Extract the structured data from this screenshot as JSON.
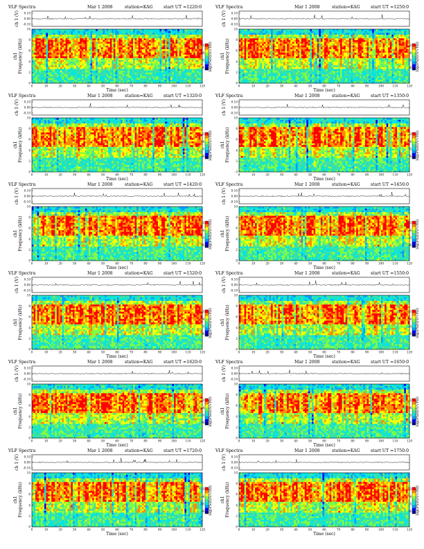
{
  "page": {
    "header_left": "VLF Spectra",
    "header_date": "Mar 1 2008",
    "header_station": "station=KAG",
    "header_start_prefix": "start  UT  ="
  },
  "colors": {
    "spectrogram_scale": [
      "#00008b",
      "#0000ff",
      "#00a0ff",
      "#00e5e5",
      "#40e0a0",
      "#80ff40",
      "#ffff00",
      "#ff8c00",
      "#ff0000"
    ],
    "trace": "#000000",
    "frame": "#000000"
  },
  "chart_data": [
    {
      "type": "heatmap",
      "start_ut": "1220:0",
      "title": "VLF Spectra",
      "top_ylabel": "ch 1 (V)",
      "top_yticks": [
        "0.10",
        "0.00",
        "-0.10"
      ],
      "ylabel_line1": "ch1",
      "ylabel_line2": "Frequency  (kHz)",
      "y_ticks": [
        0,
        2,
        4,
        6,
        8,
        10
      ],
      "xlabel": "Time  (sec)",
      "x_ticks": [
        0,
        10,
        20,
        30,
        40,
        50,
        60,
        70,
        80,
        90,
        100,
        110,
        120
      ],
      "xlim": [
        0,
        120
      ],
      "ylim": [
        0,
        10
      ],
      "colorbar_label": "log(PSD)(V/√Hz)",
      "colorbar_ticks": [
        "-3",
        "-4",
        "-5",
        "-6"
      ]
    },
    {
      "type": "heatmap",
      "start_ut": "1250:0",
      "title": "VLF Spectra",
      "top_ylabel": "ch 1 (V)",
      "top_yticks": [
        "0.10",
        "0.00",
        "-0.10"
      ],
      "ylabel_line1": "ch1",
      "ylabel_line2": "Frequency  (kHz)",
      "y_ticks": [
        0,
        2,
        4,
        6,
        8,
        10
      ],
      "xlabel": "Time  (sec)",
      "x_ticks": [
        0,
        10,
        20,
        30,
        40,
        50,
        60,
        70,
        80,
        90,
        100,
        110,
        120
      ],
      "xlim": [
        0,
        120
      ],
      "ylim": [
        0,
        10
      ],
      "colorbar_label": "log(PSD)(V/√Hz)",
      "colorbar_ticks": [
        "-3",
        "-4",
        "-5",
        "-6"
      ]
    },
    {
      "type": "heatmap",
      "start_ut": "1320:0",
      "title": "VLF Spectra",
      "top_ylabel": "ch 1 (V)",
      "top_yticks": [
        "0.10",
        "0.00",
        "-0.10"
      ],
      "ylabel_line1": "ch1",
      "ylabel_line2": "Frequency  (kHz)",
      "y_ticks": [
        0,
        2,
        4,
        6,
        8,
        10
      ],
      "xlabel": "Time  (sec)",
      "x_ticks": [
        0,
        10,
        20,
        30,
        40,
        50,
        60,
        70,
        80,
        90,
        100,
        110,
        120
      ],
      "xlim": [
        0,
        120
      ],
      "ylim": [
        0,
        10
      ],
      "colorbar_label": "log(PSD)(V/√Hz)",
      "colorbar_ticks": [
        "-3",
        "-4",
        "-5",
        "-6"
      ]
    },
    {
      "type": "heatmap",
      "start_ut": "1350:0",
      "title": "VLF Spectra",
      "top_ylabel": "ch 1 (V)",
      "top_yticks": [
        "0.10",
        "0.00",
        "-0.10"
      ],
      "ylabel_line1": "ch1",
      "ylabel_line2": "Frequency  (kHz)",
      "y_ticks": [
        0,
        2,
        4,
        6,
        8,
        10
      ],
      "xlabel": "Time  (sec)",
      "x_ticks": [
        0,
        10,
        20,
        30,
        40,
        50,
        60,
        70,
        80,
        90,
        100,
        110,
        120
      ],
      "xlim": [
        0,
        120
      ],
      "ylim": [
        0,
        10
      ],
      "colorbar_label": "log(PSD)(V/√Hz)",
      "colorbar_ticks": [
        "-3",
        "-4",
        "-5",
        "-6"
      ]
    },
    {
      "type": "heatmap",
      "start_ut": "1420:0",
      "title": "VLF Spectra",
      "top_ylabel": "ch 1 (V)",
      "top_yticks": [
        "0.10",
        "0.00",
        "-0.10"
      ],
      "ylabel_line1": "ch1",
      "ylabel_line2": "Frequency  (kHz)",
      "y_ticks": [
        0,
        2,
        4,
        6,
        8,
        10
      ],
      "xlabel": "Time  (sec)",
      "x_ticks": [
        0,
        10,
        20,
        30,
        40,
        50,
        60,
        70,
        80,
        90,
        100,
        110,
        120
      ],
      "xlim": [
        0,
        120
      ],
      "ylim": [
        0,
        10
      ],
      "colorbar_label": "log(PSD)(V/√Hz)",
      "colorbar_ticks": [
        "-3",
        "-4",
        "-5",
        "-6"
      ]
    },
    {
      "type": "heatmap",
      "start_ut": "1450:0",
      "title": "VLF Spectra",
      "top_ylabel": "ch 1 (V)",
      "top_yticks": [
        "0.10",
        "0.00",
        "-0.10"
      ],
      "ylabel_line1": "ch1",
      "ylabel_line2": "Frequency  (kHz)",
      "y_ticks": [
        0,
        2,
        4,
        6,
        8,
        10
      ],
      "xlabel": "Time  (sec)",
      "x_ticks": [
        0,
        10,
        20,
        30,
        40,
        50,
        60,
        70,
        80,
        90,
        100,
        110,
        120
      ],
      "xlim": [
        0,
        120
      ],
      "ylim": [
        0,
        10
      ],
      "colorbar_label": "log(PSD)(V/√Hz)",
      "colorbar_ticks": [
        "-3",
        "-4",
        "-5",
        "-6"
      ]
    },
    {
      "type": "heatmap",
      "start_ut": "1520:0",
      "title": "VLF Spectra",
      "top_ylabel": "ch 1 (V)",
      "top_yticks": [
        "0.10",
        "0.00",
        "-0.10"
      ],
      "ylabel_line1": "ch1",
      "ylabel_line2": "Frequency  (kHz)",
      "y_ticks": [
        0,
        2,
        4,
        6,
        8,
        10
      ],
      "xlabel": "Time  (sec)",
      "x_ticks": [
        0,
        10,
        20,
        30,
        40,
        50,
        60,
        70,
        80,
        90,
        100,
        110,
        120
      ],
      "xlim": [
        0,
        120
      ],
      "ylim": [
        0,
        10
      ],
      "colorbar_label": "log(PSD)(V/√Hz)",
      "colorbar_ticks": [
        "-3",
        "-4",
        "-5",
        "-6"
      ]
    },
    {
      "type": "heatmap",
      "start_ut": "1550:0",
      "title": "VLF Spectra",
      "top_ylabel": "ch 1 (V)",
      "top_yticks": [
        "0.10",
        "0.00",
        "-0.10"
      ],
      "ylabel_line1": "ch1",
      "ylabel_line2": "Frequency  (kHz)",
      "y_ticks": [
        0,
        2,
        4,
        6,
        8,
        10
      ],
      "xlabel": "Time  (sec)",
      "x_ticks": [
        0,
        10,
        20,
        30,
        40,
        50,
        60,
        70,
        80,
        90,
        100,
        110,
        120
      ],
      "xlim": [
        0,
        120
      ],
      "ylim": [
        0,
        10
      ],
      "colorbar_label": "log(PSD)(V/√Hz)",
      "colorbar_ticks": [
        "-3",
        "-4",
        "-5",
        "-6"
      ]
    },
    {
      "type": "heatmap",
      "start_ut": "1620:0",
      "title": "VLF Spectra",
      "top_ylabel": "ch 1 (V)",
      "top_yticks": [
        "0.10",
        "0.00",
        "-0.10"
      ],
      "ylabel_line1": "ch1",
      "ylabel_line2": "Frequency  (kHz)",
      "y_ticks": [
        0,
        2,
        4,
        6,
        8,
        10
      ],
      "xlabel": "Time  (sec)",
      "x_ticks": [
        0,
        10,
        20,
        30,
        40,
        50,
        60,
        70,
        80,
        90,
        100,
        110,
        120
      ],
      "xlim": [
        0,
        120
      ],
      "ylim": [
        0,
        10
      ],
      "colorbar_label": "log(PSD)(V/√Hz)",
      "colorbar_ticks": [
        "-3",
        "-4",
        "-5",
        "-6"
      ]
    },
    {
      "type": "heatmap",
      "start_ut": "1650:0",
      "title": "VLF Spectra",
      "top_ylabel": "ch 1 (V)",
      "top_yticks": [
        "0.10",
        "0.00",
        "-0.10"
      ],
      "ylabel_line1": "ch1",
      "ylabel_line2": "Frequency  (kHz)",
      "y_ticks": [
        0,
        2,
        4,
        6,
        8,
        10
      ],
      "xlabel": "Time  (sec)",
      "x_ticks": [
        0,
        10,
        20,
        30,
        40,
        50,
        60,
        70,
        80,
        90,
        100,
        110,
        120
      ],
      "xlim": [
        0,
        120
      ],
      "ylim": [
        0,
        10
      ],
      "colorbar_label": "log(PSD)(V/√Hz)",
      "colorbar_ticks": [
        "-3",
        "-4",
        "-5",
        "-6"
      ]
    },
    {
      "type": "heatmap",
      "start_ut": "1720:0",
      "title": "VLF Spectra",
      "top_ylabel": "ch 1 (V)",
      "top_yticks": [
        "0.10",
        "0.00",
        "-0.10"
      ],
      "ylabel_line1": "ch1",
      "ylabel_line2": "Frequency  (kHz)",
      "y_ticks": [
        0,
        2,
        4,
        6,
        8,
        10
      ],
      "xlabel": "Time  (sec)",
      "x_ticks": [
        0,
        10,
        20,
        30,
        40,
        50,
        60,
        70,
        80,
        90,
        100,
        110,
        120
      ],
      "xlim": [
        0,
        120
      ],
      "ylim": [
        0,
        10
      ],
      "colorbar_label": "log(PSD)(V/√Hz)",
      "colorbar_ticks": [
        "-3",
        "-4",
        "-5",
        "-6"
      ]
    },
    {
      "type": "heatmap",
      "start_ut": "1750:0",
      "title": "VLF Spectra",
      "top_ylabel": "ch 1 (V)",
      "top_yticks": [
        "0.10",
        "0.00",
        "-0.10"
      ],
      "ylabel_line1": "ch1",
      "ylabel_line2": "Frequency  (kHz)",
      "y_ticks": [
        0,
        2,
        4,
        6,
        8,
        10
      ],
      "xlabel": "Time  (sec)",
      "x_ticks": [
        0,
        10,
        20,
        30,
        40,
        50,
        60,
        70,
        80,
        90,
        100,
        110,
        120
      ],
      "xlim": [
        0,
        120
      ],
      "ylim": [
        0,
        10
      ],
      "colorbar_label": "log(PSD)(V/√Hz)",
      "colorbar_ticks": [
        "-3",
        "-4",
        "-5",
        "-6"
      ]
    }
  ]
}
